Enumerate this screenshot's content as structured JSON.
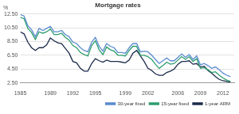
{
  "chart_data": {
    "type": "line",
    "title": "Mortgage rates",
    "ylabel": "%",
    "x": [
      1985,
      1985.5,
      1986,
      1986.5,
      1987,
      1987.5,
      1988,
      1988.5,
      1989,
      1989.5,
      1990,
      1990.5,
      1991,
      1991.5,
      1992,
      1992.5,
      1993,
      1993.5,
      1994,
      1994.5,
      1995,
      1995.5,
      1996,
      1996.5,
      1997,
      1997.5,
      1998,
      1998.5,
      1999,
      1999.5,
      2000,
      2000.5,
      2001,
      2001.5,
      2002,
      2002.5,
      2003,
      2003.5,
      2004,
      2004.5,
      2005,
      2005.5,
      2006,
      2006.5,
      2007,
      2007.5,
      2008,
      2008.5,
      2009,
      2009.5,
      2010,
      2010.5,
      2011,
      2011.5,
      2012,
      2012.5,
      2013
    ],
    "series": [
      {
        "name": "30-year fixed",
        "color": "#5b8bd0",
        "values": [
          12.4,
          12.2,
          10.8,
          10.2,
          9.2,
          10.4,
          10.1,
          10.4,
          10.7,
          9.9,
          9.9,
          10.1,
          9.5,
          9.2,
          8.4,
          8.2,
          7.6,
          7.2,
          7.0,
          8.4,
          9.1,
          7.8,
          7.1,
          8.2,
          7.8,
          7.6,
          6.9,
          6.9,
          6.8,
          7.6,
          8.2,
          8.2,
          7.0,
          7.1,
          7.0,
          6.5,
          5.9,
          5.3,
          5.7,
          6.1,
          5.7,
          5.7,
          6.2,
          6.7,
          6.2,
          6.6,
          5.9,
          6.4,
          5.1,
          5.3,
          5.0,
          4.6,
          4.8,
          4.4,
          3.9,
          3.6,
          3.4
        ]
      },
      {
        "name": "15-year fixed",
        "color": "#2e9e6e",
        "values": [
          12.0,
          11.8,
          10.4,
          9.8,
          8.8,
          9.9,
          9.7,
          9.9,
          10.3,
          9.5,
          9.5,
          9.7,
          9.1,
          8.7,
          7.9,
          7.6,
          6.9,
          6.6,
          6.4,
          7.9,
          8.6,
          7.3,
          6.6,
          7.7,
          7.3,
          7.1,
          6.5,
          6.5,
          6.4,
          7.2,
          7.8,
          7.8,
          6.5,
          6.5,
          6.3,
          5.9,
          5.2,
          4.6,
          5.0,
          5.5,
          5.2,
          5.3,
          5.8,
          6.3,
          5.9,
          6.3,
          5.6,
          6.0,
          4.6,
          4.7,
          4.4,
          4.0,
          4.1,
          3.6,
          3.2,
          2.9,
          2.7
        ]
      },
      {
        "name": "1-year ARM",
        "color": "#1c2b4b",
        "values": [
          9.9,
          9.6,
          8.4,
          7.6,
          7.2,
          7.6,
          7.6,
          8.0,
          9.0,
          8.6,
          8.3,
          8.2,
          7.5,
          6.8,
          5.6,
          5.4,
          4.6,
          4.2,
          4.2,
          5.3,
          6.0,
          5.7,
          5.5,
          5.8,
          5.6,
          5.6,
          5.6,
          5.5,
          5.4,
          5.8,
          6.8,
          7.2,
          6.4,
          5.6,
          4.6,
          4.3,
          3.8,
          3.6,
          3.6,
          4.0,
          4.2,
          4.5,
          5.2,
          5.6,
          5.6,
          5.7,
          5.2,
          5.3,
          4.8,
          4.9,
          4.3,
          3.9,
          3.4,
          3.0,
          2.8,
          2.7,
          2.6
        ]
      }
    ],
    "xlim": [
      1985,
      2013.5
    ],
    "xticks": [
      1985,
      1989,
      1992,
      1995,
      1999,
      2002,
      2006,
      2009,
      2012
    ],
    "ylim": [
      2.5,
      12.5
    ],
    "yticks": [
      {
        "value": 2.5,
        "label": "2.50"
      },
      {
        "value": 4.5,
        "label": "4.50"
      },
      {
        "value": 6.5,
        "label": "6.50"
      },
      {
        "value": 8.5,
        "label": "8.50"
      },
      {
        "value": 10.5,
        "label": "10.50"
      },
      {
        "value": 12.5,
        "label": "12.50"
      }
    ],
    "grid": true,
    "legend": "bottom"
  }
}
